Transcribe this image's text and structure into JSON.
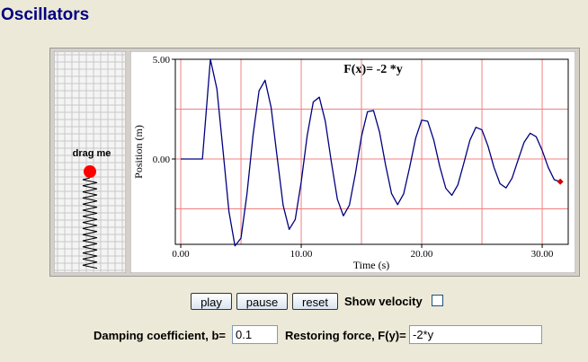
{
  "header": {
    "title": "Oscillators"
  },
  "spring": {
    "label": "drag me"
  },
  "chart_data": {
    "type": "line",
    "title": "F(x)= -2 *y",
    "x_label": "Time (s)",
    "y_label": "Position (m)",
    "x": [
      0,
      1.8,
      2.46,
      3.0,
      3.5,
      4.0,
      4.5,
      5.0,
      5.5,
      6.0,
      6.5,
      7.0,
      7.5,
      8.0,
      8.5,
      9.0,
      9.5,
      10.0,
      10.5,
      11.0,
      11.5,
      12.0,
      12.5,
      13.0,
      13.5,
      14.0,
      14.5,
      15.0,
      15.5,
      16.0,
      16.5,
      17.0,
      17.5,
      18.0,
      18.5,
      19.0,
      19.5,
      20.0,
      20.5,
      21.0,
      21.5,
      22.0,
      22.5,
      23.0,
      23.5,
      24.0,
      24.5,
      25.0,
      25.5,
      26.0,
      26.5,
      27.0,
      27.5,
      28.0,
      28.5,
      29.0,
      29.5,
      30.0,
      30.5,
      31.0,
      31.5
    ],
    "values": [
      0,
      0,
      5.0,
      3.52,
      0.48,
      -2.63,
      -4.36,
      -3.97,
      -1.74,
      1.19,
      3.42,
      3.95,
      2.59,
      0.1,
      -2.33,
      -3.53,
      -3.04,
      -1.15,
      1.19,
      2.86,
      3.1,
      1.89,
      -0.15,
      -2.02,
      -2.85,
      -2.31,
      -0.72,
      1.13,
      2.37,
      2.43,
      1.35,
      -0.3,
      -1.74,
      -2.29,
      -1.75,
      -0.41,
      1.05,
      1.95,
      1.89,
      0.95,
      -0.38,
      -1.47,
      -1.82,
      -1.3,
      -0.2,
      0.94,
      1.59,
      1.46,
      0.65,
      -0.42,
      -1.24,
      -1.45,
      -0.96,
      -0.05,
      0.84,
      1.29,
      1.12,
      0.43,
      -0.42,
      -1.04,
      -1.14
    ],
    "color": "#000080",
    "marker_color": "#cc0000",
    "grid_color": "#f08080",
    "xlim": [
      -0.45,
      32.16
    ],
    "ylim": [
      -4.28,
      5.0
    ],
    "xticks": [
      {
        "value": 0,
        "label": "0.00"
      },
      {
        "value": 10,
        "label": "10.00"
      },
      {
        "value": 20,
        "label": "20.00"
      },
      {
        "value": 30,
        "label": "30.00"
      }
    ],
    "yticks": [
      {
        "value": 0,
        "label": "0.00"
      },
      {
        "value": 5,
        "label": "5.00"
      }
    ],
    "xminor": [
      5,
      15,
      25
    ],
    "yminor": [
      -2.5,
      2.5
    ],
    "grid": true
  },
  "controls": {
    "buttons": [
      "play",
      "pause",
      "reset"
    ],
    "checkbox_label": "Show velocity",
    "damping_label": "Damping coefficient, b=",
    "damping_value": "0.1",
    "force_label": "Restoring force, F(y)=",
    "force_value": "-2*y"
  }
}
